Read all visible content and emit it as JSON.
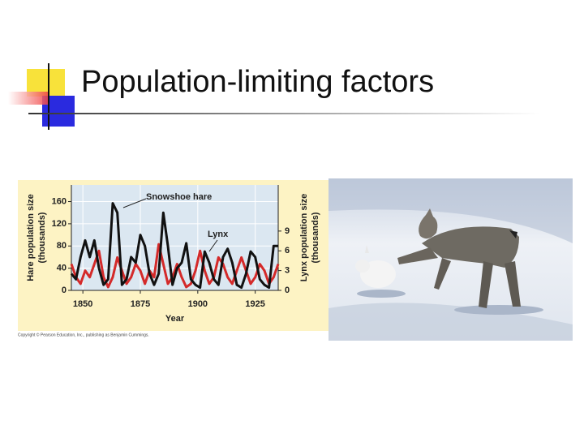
{
  "slide": {
    "title": "Population-limiting factors",
    "copyright": "Copyright © Pearson Education, Inc., publishing as Benjamin Cummings."
  },
  "chart_data": {
    "type": "line",
    "x": [
      1845,
      1847,
      1849,
      1851,
      1853,
      1855,
      1857,
      1859,
      1861,
      1863,
      1865,
      1867,
      1869,
      1871,
      1873,
      1875,
      1877,
      1879,
      1881,
      1883,
      1885,
      1887,
      1889,
      1891,
      1893,
      1895,
      1897,
      1899,
      1901,
      1903,
      1905,
      1907,
      1909,
      1911,
      1913,
      1915,
      1917,
      1919,
      1921,
      1923,
      1925,
      1927,
      1929,
      1931,
      1933,
      1935
    ],
    "series": [
      {
        "name": "Snowshoe hare",
        "color": "#111111",
        "values": [
          30,
          20,
          60,
          90,
          60,
          90,
          40,
          10,
          20,
          157,
          140,
          10,
          20,
          60,
          50,
          100,
          80,
          30,
          10,
          30,
          140,
          80,
          10,
          40,
          50,
          85,
          20,
          10,
          5,
          70,
          50,
          20,
          10,
          60,
          75,
          50,
          10,
          5,
          30,
          70,
          60,
          20,
          10,
          5,
          80,
          80
        ]
      },
      {
        "name": "Lynx",
        "color": "#d42a2a",
        "axis": "y2",
        "values": [
          4,
          2,
          1,
          3,
          2,
          4,
          6,
          2,
          0.5,
          2,
          5,
          3,
          1,
          2,
          4,
          3,
          1,
          3,
          2,
          7,
          4,
          1,
          2,
          4,
          2,
          0.5,
          1,
          3,
          6,
          3,
          1,
          2,
          5,
          4,
          2,
          1,
          3,
          5,
          3,
          1,
          2,
          4,
          3,
          1,
          2,
          4
        ]
      }
    ],
    "xlabel": "Year",
    "ylabel": [
      "Hare population size",
      "(thousands)"
    ],
    "y2label": [
      "Lynx population size",
      "(thousands)"
    ],
    "xlim": [
      1845,
      1935
    ],
    "xticks": [
      1850,
      1875,
      1900,
      1925
    ],
    "ylim": [
      0,
      190
    ],
    "yticks": [
      0,
      40,
      80,
      120,
      160
    ],
    "y2lim": [
      0,
      16
    ],
    "y2ticks": [
      0,
      3,
      6,
      9
    ],
    "grid": true
  }
}
